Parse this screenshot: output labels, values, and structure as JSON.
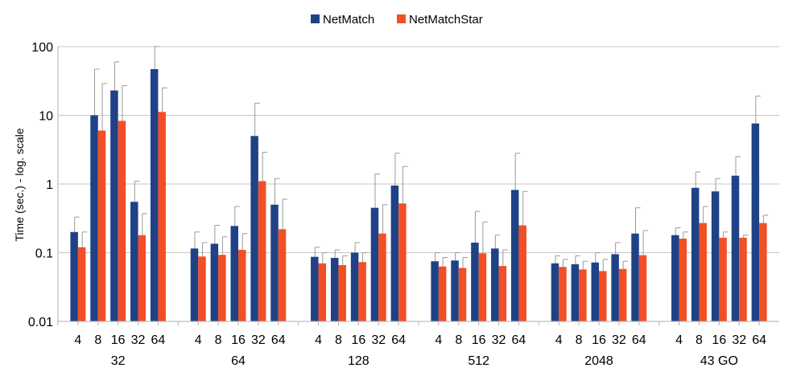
{
  "chart_data": {
    "type": "bar",
    "ylabel": "Time (sec.) - log. scale",
    "xlabel": "",
    "yscale": "log",
    "ylim": [
      0.01,
      100
    ],
    "yticks": [
      "0.01",
      "0.1",
      "1",
      "10",
      "100"
    ],
    "grid": "horizontal",
    "legend_position": "top-center",
    "groups": [
      {
        "label": "32",
        "categories": [
          "4",
          "8",
          "16",
          "32",
          "64"
        ]
      },
      {
        "label": "64",
        "categories": [
          "4",
          "8",
          "16",
          "32",
          "64"
        ]
      },
      {
        "label": "128",
        "categories": [
          "4",
          "8",
          "16",
          "32",
          "64"
        ]
      },
      {
        "label": "512",
        "categories": [
          "4",
          "8",
          "16",
          "32",
          "64"
        ]
      },
      {
        "label": "2048",
        "categories": [
          "4",
          "8",
          "16",
          "32",
          "64"
        ]
      },
      {
        "label": "43 GO",
        "categories": [
          "4",
          "8",
          "16",
          "32",
          "64"
        ]
      }
    ],
    "series": [
      {
        "name": "NetMatch",
        "color": "#1f4287",
        "values": [
          [
            0.2,
            10,
            23,
            0.55,
            47
          ],
          [
            0.115,
            0.135,
            0.245,
            5.0,
            0.5
          ],
          [
            0.087,
            0.084,
            0.1,
            0.45,
            0.95
          ],
          [
            0.075,
            0.077,
            0.14,
            0.115,
            0.82
          ],
          [
            0.07,
            0.068,
            0.072,
            0.095,
            0.19
          ],
          [
            0.18,
            0.88,
            0.78,
            1.32,
            7.6
          ]
        ],
        "error_upper": [
          [
            0.33,
            47,
            60,
            1.1,
            100
          ],
          [
            0.2,
            0.25,
            0.47,
            15,
            1.2
          ],
          [
            0.12,
            0.11,
            0.14,
            1.4,
            2.8
          ],
          [
            0.1,
            0.1,
            0.4,
            0.18,
            2.8
          ],
          [
            0.09,
            0.09,
            0.1,
            0.14,
            0.45
          ],
          [
            0.23,
            1.5,
            1.2,
            2.5,
            19
          ]
        ]
      },
      {
        "name": "NetMatchStar",
        "color": "#f24f27",
        "values": [
          [
            0.12,
            6,
            8.3,
            0.18,
            11.2
          ],
          [
            0.088,
            0.093,
            0.11,
            1.1,
            0.22
          ],
          [
            0.07,
            0.066,
            0.073,
            0.19,
            0.52
          ],
          [
            0.063,
            0.06,
            0.098,
            0.064,
            0.25
          ],
          [
            0.062,
            0.057,
            0.054,
            0.058,
            0.092
          ],
          [
            0.16,
            0.27,
            0.165,
            0.165,
            0.27
          ]
        ],
        "error_upper": [
          [
            0.2,
            29,
            27,
            0.37,
            25
          ],
          [
            0.14,
            0.17,
            0.19,
            2.9,
            0.6
          ],
          [
            0.1,
            0.09,
            0.1,
            0.5,
            1.8
          ],
          [
            0.085,
            0.085,
            0.28,
            0.11,
            0.78
          ],
          [
            0.08,
            0.075,
            0.08,
            0.075,
            0.21
          ],
          [
            0.2,
            0.47,
            0.2,
            0.18,
            0.35
          ]
        ]
      }
    ]
  }
}
